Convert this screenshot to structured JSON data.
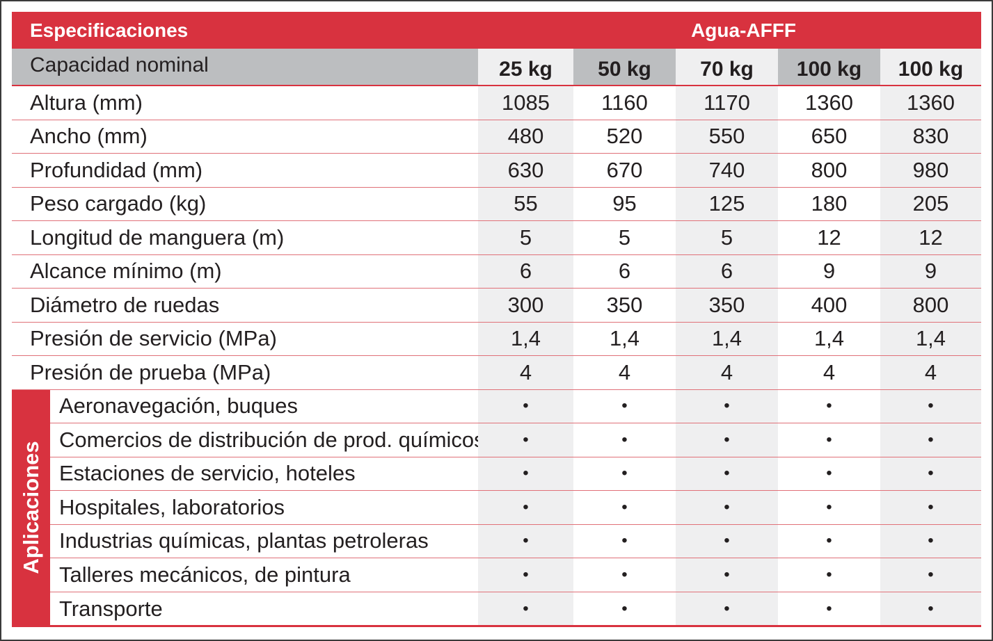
{
  "header": {
    "specifications": "Especificaciones",
    "product": "Agua-AFFF"
  },
  "capacity": {
    "label": "Capacidad nominal",
    "values": [
      "25 kg",
      "50 kg",
      "70 kg",
      "100 kg",
      "100 kg"
    ]
  },
  "specs": [
    {
      "label": "Altura (mm)",
      "values": [
        "1085",
        "1160",
        "1170",
        "1360",
        "1360"
      ]
    },
    {
      "label": "Ancho (mm)",
      "values": [
        "480",
        "520",
        "550",
        "650",
        "830"
      ]
    },
    {
      "label": "Profundidad (mm)",
      "values": [
        "630",
        "670",
        "740",
        "800",
        "980"
      ]
    },
    {
      "label": "Peso cargado (kg)",
      "values": [
        "55",
        "95",
        "125",
        "180",
        "205"
      ]
    },
    {
      "label": "Longitud de manguera (m)",
      "values": [
        "5",
        "5",
        "5",
        "12",
        "12"
      ]
    },
    {
      "label": "Alcance mínimo (m)",
      "values": [
        "6",
        "6",
        "6",
        "9",
        "9"
      ]
    },
    {
      "label": "Diámetro de ruedas",
      "values": [
        "300",
        "350",
        "350",
        "400",
        "800"
      ]
    },
    {
      "label": "Presión de servicio (MPa)",
      "values": [
        "1,4",
        "1,4",
        "1,4",
        "1,4",
        "1,4"
      ]
    },
    {
      "label": "Presión de prueba (MPa)",
      "values": [
        "4",
        "4",
        "4",
        "4",
        "4"
      ]
    }
  ],
  "applications": {
    "title": "Aplicaciones",
    "bullet": "•",
    "items": [
      "Aeronavegación, buques",
      "Comercios de distribución de prod. químicos",
      "Estaciones de servicio, hoteles",
      "Hospitales, laboratorios",
      "Industrias químicas, plantas petroleras",
      "Talleres mecánicos, de pintura",
      "Transporte"
    ]
  },
  "colors": {
    "accent": "#d8323f",
    "header_gray": "#bcbec0",
    "light_gray": "#efeff0"
  }
}
